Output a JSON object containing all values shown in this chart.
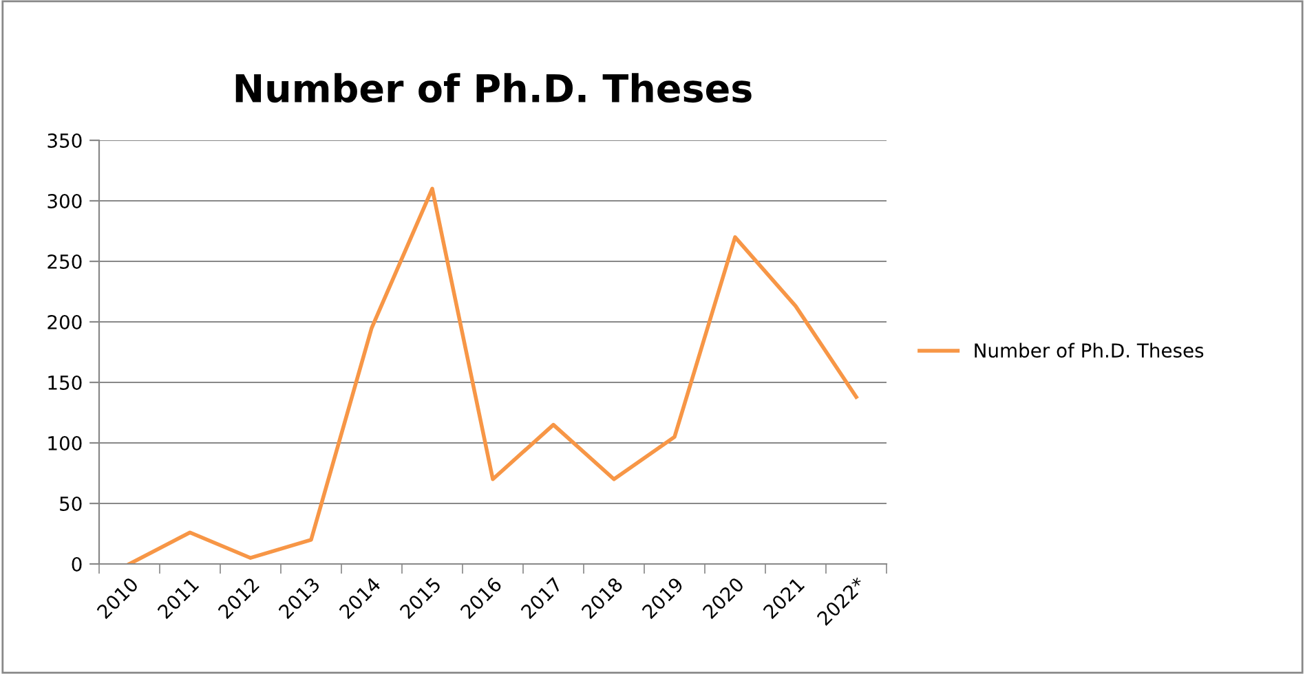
{
  "chart_data": {
    "type": "line",
    "title": "Number of Ph.D. Theses",
    "categories": [
      "2010",
      "2011",
      "2012",
      "2013",
      "2014",
      "2015",
      "2016",
      "2017",
      "2018",
      "2019",
      "2020",
      "2021",
      "2022*"
    ],
    "series": [
      {
        "name": "Number of Ph.D. Theses",
        "color": "#f79646",
        "values": [
          0,
          26,
          5,
          20,
          195,
          310,
          70,
          115,
          70,
          105,
          270,
          213,
          138
        ]
      }
    ],
    "ylim": [
      0,
      350
    ],
    "yticks": [
      0,
      50,
      100,
      150,
      200,
      250,
      300,
      350
    ],
    "grid": "y",
    "legend": "right",
    "marker": "none",
    "line_style": "solid"
  }
}
